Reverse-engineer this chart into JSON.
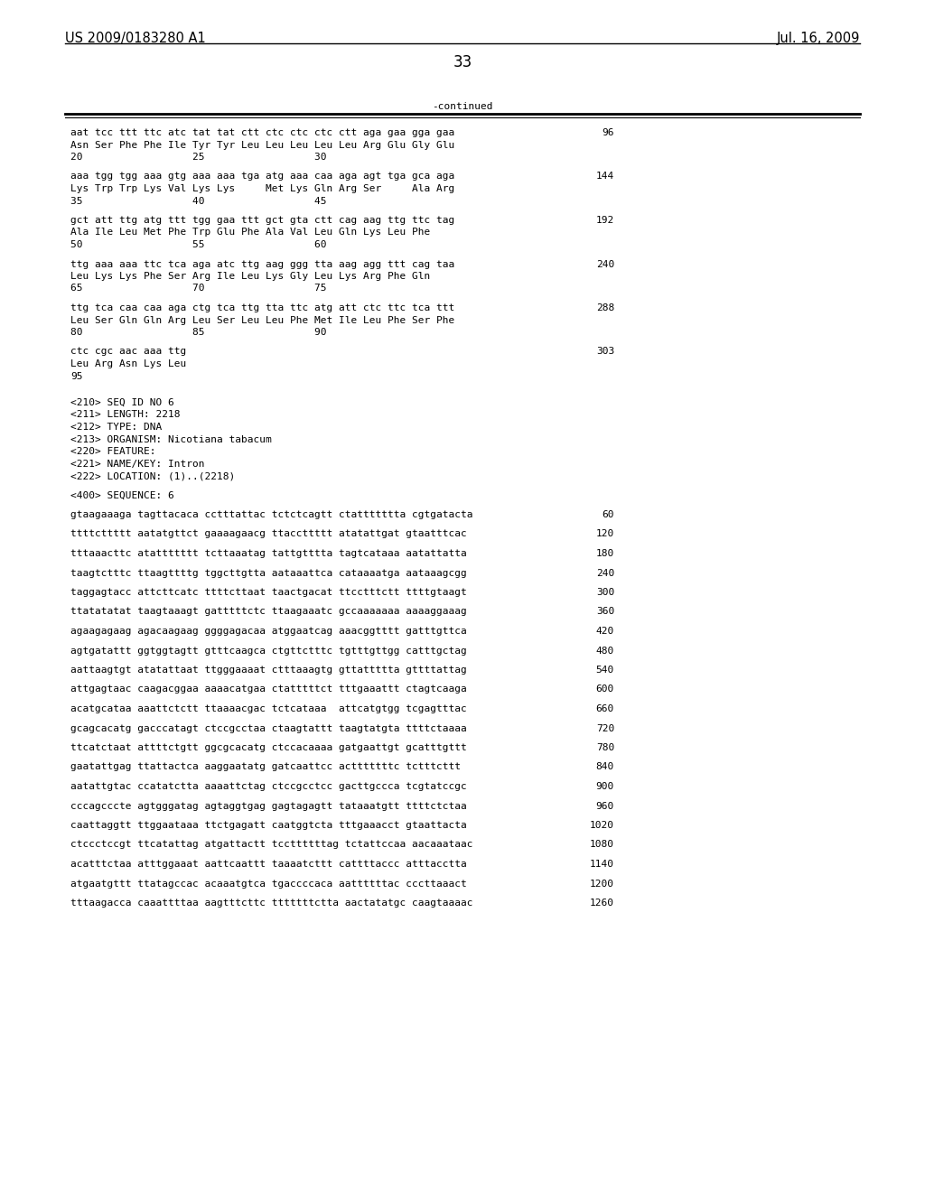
{
  "header_left": "US 2009/0183280 A1",
  "header_right": "Jul. 16, 2009",
  "page_number": "33",
  "continued_label": "-continued",
  "background_color": "#ffffff",
  "text_color": "#000000",
  "font_size_header": 10.5,
  "font_size_body": 8.0,
  "font_size_page": 12,
  "content_lines": [
    {
      "text": "aat tcc ttt ttc atc tat tat ctt ctc ctc ctc ctt aga gaa gga gaa",
      "num": "96",
      "type": "seq"
    },
    {
      "text": "Asn Ser Phe Phe Ile Tyr Tyr Leu Leu Leu Leu Leu Arg Glu Gly Glu",
      "num": "",
      "type": "aa"
    },
    {
      "text": "20                  25                  30",
      "num": "",
      "type": "pos"
    },
    {
      "text": "",
      "num": "",
      "type": "blank"
    },
    {
      "text": "aaa tgg tgg aaa gtg aaa aaa tga atg aaa caa aga agt tga gca aga",
      "num": "144",
      "type": "seq"
    },
    {
      "text": "Lys Trp Trp Lys Val Lys Lys     Met Lys Gln Arg Ser     Ala Arg",
      "num": "",
      "type": "aa"
    },
    {
      "text": "35                  40                  45",
      "num": "",
      "type": "pos"
    },
    {
      "text": "",
      "num": "",
      "type": "blank"
    },
    {
      "text": "gct att ttg atg ttt tgg gaa ttt gct gta ctt cag aag ttg ttc tag",
      "num": "192",
      "type": "seq"
    },
    {
      "text": "Ala Ile Leu Met Phe Trp Glu Phe Ala Val Leu Gln Lys Leu Phe",
      "num": "",
      "type": "aa"
    },
    {
      "text": "50                  55                  60",
      "num": "",
      "type": "pos"
    },
    {
      "text": "",
      "num": "",
      "type": "blank"
    },
    {
      "text": "ttg aaa aaa ttc tca aga atc ttg aag ggg tta aag agg ttt cag taa",
      "num": "240",
      "type": "seq"
    },
    {
      "text": "Leu Lys Lys Phe Ser Arg Ile Leu Lys Gly Leu Lys Arg Phe Gln",
      "num": "",
      "type": "aa"
    },
    {
      "text": "65                  70                  75",
      "num": "",
      "type": "pos"
    },
    {
      "text": "",
      "num": "",
      "type": "blank"
    },
    {
      "text": "ttg tca caa caa aga ctg tca ttg tta ttc atg att ctc ttc tca ttt",
      "num": "288",
      "type": "seq"
    },
    {
      "text": "Leu Ser Gln Gln Arg Leu Ser Leu Leu Phe Met Ile Leu Phe Ser Phe",
      "num": "",
      "type": "aa"
    },
    {
      "text": "80                  85                  90",
      "num": "",
      "type": "pos"
    },
    {
      "text": "",
      "num": "",
      "type": "blank"
    },
    {
      "text": "ctc cgc aac aaa ttg",
      "num": "303",
      "type": "seq"
    },
    {
      "text": "Leu Arg Asn Lys Leu",
      "num": "",
      "type": "aa"
    },
    {
      "text": "95",
      "num": "",
      "type": "pos"
    },
    {
      "text": "",
      "num": "",
      "type": "blank"
    },
    {
      "text": "",
      "num": "",
      "type": "blank"
    },
    {
      "text": "<210> SEQ ID NO 6",
      "num": "",
      "type": "meta"
    },
    {
      "text": "<211> LENGTH: 2218",
      "num": "",
      "type": "meta"
    },
    {
      "text": "<212> TYPE: DNA",
      "num": "",
      "type": "meta"
    },
    {
      "text": "<213> ORGANISM: Nicotiana tabacum",
      "num": "",
      "type": "meta"
    },
    {
      "text": "<220> FEATURE:",
      "num": "",
      "type": "meta"
    },
    {
      "text": "<221> NAME/KEY: Intron",
      "num": "",
      "type": "meta"
    },
    {
      "text": "<222> LOCATION: (1)..(2218)",
      "num": "",
      "type": "meta"
    },
    {
      "text": "",
      "num": "",
      "type": "blank"
    },
    {
      "text": "<400> SEQUENCE: 6",
      "num": "",
      "type": "meta"
    },
    {
      "text": "",
      "num": "",
      "type": "blank"
    },
    {
      "text": "gtaagaaaga tagttacaca cctttattac tctctcagtt ctattttttta cgtgatacta",
      "num": "60",
      "type": "seq2"
    },
    {
      "text": "",
      "num": "",
      "type": "blank"
    },
    {
      "text": "ttttcttttt aatatgttct gaaaagaacg ttaccttttt atatattgat gtaatttcac",
      "num": "120",
      "type": "seq2"
    },
    {
      "text": "",
      "num": "",
      "type": "blank"
    },
    {
      "text": "tttaaacttc atattttttt tcttaaatag tattgtttta tagtcataaa aatattatta",
      "num": "180",
      "type": "seq2"
    },
    {
      "text": "",
      "num": "",
      "type": "blank"
    },
    {
      "text": "taagtctttc ttaagttttg tggcttgtta aataaattca cataaaatga aataaagcgg",
      "num": "240",
      "type": "seq2"
    },
    {
      "text": "",
      "num": "",
      "type": "blank"
    },
    {
      "text": "taggagtacc attcttcatc ttttcttaat taactgacat ttcctttctt ttttgtaagt",
      "num": "300",
      "type": "seq2"
    },
    {
      "text": "",
      "num": "",
      "type": "blank"
    },
    {
      "text": "ttatatatat taagtaaagt gatttttctc ttaagaaatc gccaaaaaaa aaaaggaaag",
      "num": "360",
      "type": "seq2"
    },
    {
      "text": "",
      "num": "",
      "type": "blank"
    },
    {
      "text": "agaagagaag agacaagaag ggggagacaa atggaatcag aaacggtttt gatttgttca",
      "num": "420",
      "type": "seq2"
    },
    {
      "text": "",
      "num": "",
      "type": "blank"
    },
    {
      "text": "agtgatattt ggtggtagtt gtttcaagca ctgttctttc tgtttgttgg catttgctag",
      "num": "480",
      "type": "seq2"
    },
    {
      "text": "",
      "num": "",
      "type": "blank"
    },
    {
      "text": "aattaagtgt atatattaat ttgggaaaat ctttaaagtg gttattttta gttttattag",
      "num": "540",
      "type": "seq2"
    },
    {
      "text": "",
      "num": "",
      "type": "blank"
    },
    {
      "text": "attgagtaac caagacggaa aaaacatgaa ctatttttct tttgaaattt ctagtcaaga",
      "num": "600",
      "type": "seq2"
    },
    {
      "text": "",
      "num": "",
      "type": "blank"
    },
    {
      "text": "acatgcataa aaattctctt ttaaaacgac tctcataaa  attcatgtgg tcgagtttac",
      "num": "660",
      "type": "seq2"
    },
    {
      "text": "",
      "num": "",
      "type": "blank"
    },
    {
      "text": "gcagcacatg gacccatagt ctccgcctaa ctaagtattt taagtatgta ttttctaaaa",
      "num": "720",
      "type": "seq2"
    },
    {
      "text": "",
      "num": "",
      "type": "blank"
    },
    {
      "text": "ttcatctaat attttctgtt ggcgcacatg ctccacaaaa gatgaattgt gcatttgttt",
      "num": "780",
      "type": "seq2"
    },
    {
      "text": "",
      "num": "",
      "type": "blank"
    },
    {
      "text": "gaatattgag ttattactca aaggaatatg gatcaattcc actttttttc tctttcttt",
      "num": "840",
      "type": "seq2"
    },
    {
      "text": "",
      "num": "",
      "type": "blank"
    },
    {
      "text": "aatattgtac ccatatctta aaaattctag ctccgcctcc gacttgccca tcgtatccgc",
      "num": "900",
      "type": "seq2"
    },
    {
      "text": "",
      "num": "",
      "type": "blank"
    },
    {
      "text": "cccagcccte agtgggatag agtaggtgag gagtagagtt tataaatgtt ttttctctaa",
      "num": "960",
      "type": "seq2"
    },
    {
      "text": "",
      "num": "",
      "type": "blank"
    },
    {
      "text": "caattaggtt ttggaataaa ttctgagatt caatggtcta tttgaaacct gtaattacta",
      "num": "1020",
      "type": "seq2"
    },
    {
      "text": "",
      "num": "",
      "type": "blank"
    },
    {
      "text": "ctccctccgt ttcatattag atgattactt tccttttttag tctattccaa aacaaataac",
      "num": "1080",
      "type": "seq2"
    },
    {
      "text": "",
      "num": "",
      "type": "blank"
    },
    {
      "text": "acatttctaa atttggaaat aattcaattt taaaatcttt cattttaccc atttacctta",
      "num": "1140",
      "type": "seq2"
    },
    {
      "text": "",
      "num": "",
      "type": "blank"
    },
    {
      "text": "atgaatgttt ttatagccac acaaatgtca tgaccccaca aattttttac cccttaaact",
      "num": "1200",
      "type": "seq2"
    },
    {
      "text": "",
      "num": "",
      "type": "blank"
    },
    {
      "text": "tttaagacca caaattttaa aagtttcttc tttttttctta aactatatgc caagtaaaac",
      "num": "1260",
      "type": "seq2"
    }
  ]
}
